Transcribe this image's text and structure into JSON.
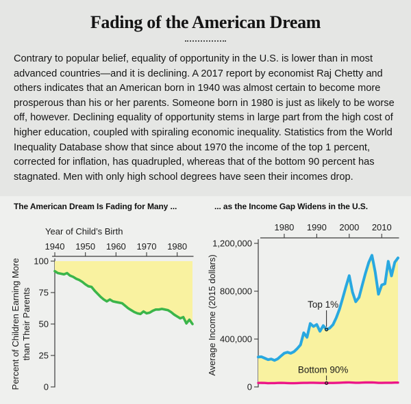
{
  "header": {
    "title": "Fading of the American Dream",
    "intro": "Contrary to popular belief, equality of opportunity in the U.S. is lower than in most advanced countries—and it is declining. A 2017 report by economist Raj Chetty and others indicates that an American born in 1940 was almost certain to become more prosperous than his or her parents. Someone born in 1980 is just as likely to be worse off, however. Declining equality of opportunity stems in large part from the high cost of higher education, coupled with spiraling economic inequality. Statistics from the World Inequality Database show that since about 1970 the income of the top 1 percent, corrected for inflation, has quadrupled, whereas that of the bottom 90 percent has stagnated. Men with only high school degrees have seen their incomes drop."
  },
  "chart_data": [
    {
      "id": "american-dream-fading",
      "type": "area",
      "title": "The American Dream Is Fading for Many ...",
      "x_label": "Year of Child’s Birth",
      "x_ticks": [
        1940,
        1950,
        1960,
        1970,
        1980
      ],
      "x_range": [
        1940,
        1985
      ],
      "y_label_lines": [
        "Percent of Children Earning More",
        "than Their Parents"
      ],
      "y_ticks": [
        0,
        25,
        50,
        75,
        100
      ],
      "y_tick_labels": [
        "0",
        "25",
        "50",
        "75",
        "100"
      ],
      "y_range": [
        0,
        100
      ],
      "grid": false,
      "legend": "none",
      "fill_color": "#f9f2a0",
      "series": [
        {
          "name": "Percent of children earning more than their parents",
          "color": "#3bb54a",
          "width": 3.6,
          "fill": "to-top",
          "x_start": 1940,
          "x_step": 1,
          "values": [
            92,
            90.5,
            90,
            89.5,
            90.5,
            88.5,
            87.5,
            86,
            85,
            83.5,
            81.5,
            80,
            79.5,
            76.5,
            74,
            71.5,
            69.5,
            68,
            69.5,
            68,
            67.5,
            67,
            66.5,
            64.5,
            62.5,
            61,
            59.5,
            58.5,
            58,
            60,
            58.5,
            59,
            60.5,
            61.5,
            61.5,
            62,
            61.5,
            61,
            59.5,
            57.5,
            56,
            54.5,
            55.5,
            50.5,
            53.5,
            50
          ]
        }
      ],
      "annotations": []
    },
    {
      "id": "income-gap-widens",
      "type": "area-between",
      "title": "... as the Income Gap Widens in the U.S.",
      "x_label": "",
      "x_ticks": [
        1980,
        1990,
        2000,
        2010
      ],
      "x_range": [
        1972,
        2015
      ],
      "y_label_lines": [
        "Average Income (2015 dollars)"
      ],
      "y_ticks": [
        0,
        400000,
        800000,
        1200000
      ],
      "y_tick_labels": [
        "0",
        "400,000",
        "800,000",
        "1,200,000"
      ],
      "y_range": [
        0,
        1200000
      ],
      "grid": false,
      "legend": "inline-annotations",
      "fill_color": "#f9f2a0",
      "series": [
        {
          "name": "Top 1%",
          "color": "#29a8e0",
          "width": 4,
          "x_start": 1972,
          "x_step": 1,
          "values": [
            250000,
            252000,
            240000,
            228000,
            233000,
            222000,
            235000,
            258000,
            282000,
            290000,
            281000,
            295000,
            320000,
            352000,
            452000,
            415000,
            530000,
            505000,
            522000,
            465000,
            512000,
            480000,
            492000,
            520000,
            578000,
            650000,
            742000,
            840000,
            930000,
            792000,
            712000,
            748000,
            850000,
            952000,
            1040000,
            1100000,
            958000,
            775000,
            852000,
            862000,
            1050000,
            928000,
            1042000,
            1078000
          ]
        },
        {
          "name": "Bottom 90%",
          "color": "#ec1588",
          "width": 3.4,
          "x_start": 1972,
          "x_step": 1,
          "values": [
            33000,
            34000,
            33000,
            31000,
            32000,
            32000,
            33000,
            34000,
            33000,
            32000,
            31000,
            31000,
            32000,
            33000,
            34000,
            34000,
            35000,
            35000,
            34000,
            33000,
            33000,
            32000,
            33000,
            33000,
            34000,
            35000,
            36000,
            37000,
            38000,
            36000,
            35000,
            35000,
            36000,
            37000,
            37000,
            38000,
            36000,
            34000,
            34000,
            35000,
            35000,
            35000,
            36000,
            36000
          ]
        }
      ],
      "annotations": [
        {
          "text": "Top 1%",
          "year": 1993,
          "value": 480000,
          "label_dy": -32
        },
        {
          "text": "Bottom 90%",
          "year": 1993,
          "value": 32000,
          "label_dy": -15
        }
      ]
    }
  ]
}
